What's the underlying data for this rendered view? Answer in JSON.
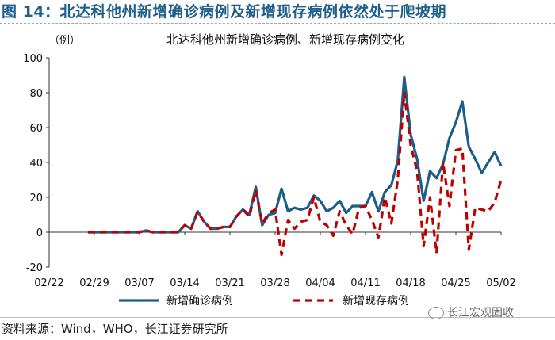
{
  "figure_title": "图 14：北达科他州新增确诊病例及新增现存病例依然处于爬坡期",
  "source": "资料来源：Wind，WHO，长江证券研究所",
  "watermark": "长江宏观固收",
  "colors": {
    "title": "#1f5f8b",
    "confirmed": "#1d5e89",
    "active": "#c00000"
  },
  "chart_data": {
    "type": "line",
    "title": "北达科他州新增确诊病例、新增现存病例变化",
    "ylabel": "（例）",
    "ylim": [
      -20,
      100
    ],
    "yticks": [
      -20,
      0,
      20,
      40,
      60,
      80,
      100
    ],
    "x_range": [
      "02/22",
      "05/02"
    ],
    "xtick_labels": [
      "02/22",
      "02/29",
      "03/07",
      "03/14",
      "03/21",
      "03/28",
      "04/04",
      "04/11",
      "04/18",
      "04/25",
      "05/02"
    ],
    "legend_position": "bottom",
    "grid": false,
    "series": [
      {
        "name": "新增确诊病例",
        "style": "solid",
        "color": "#1d5e89",
        "points": [
          [
            "02/28",
            0
          ],
          [
            "02/29",
            0
          ],
          [
            "03/01",
            0
          ],
          [
            "03/02",
            0
          ],
          [
            "03/03",
            0
          ],
          [
            "03/04",
            0
          ],
          [
            "03/05",
            0
          ],
          [
            "03/06",
            0
          ],
          [
            "03/07",
            0
          ],
          [
            "03/08",
            1
          ],
          [
            "03/09",
            0
          ],
          [
            "03/10",
            0
          ],
          [
            "03/11",
            0
          ],
          [
            "03/12",
            0
          ],
          [
            "03/13",
            0
          ],
          [
            "03/14",
            4
          ],
          [
            "03/15",
            2
          ],
          [
            "03/16",
            12
          ],
          [
            "03/17",
            6
          ],
          [
            "03/18",
            2
          ],
          [
            "03/19",
            2
          ],
          [
            "03/20",
            3
          ],
          [
            "03/21",
            3
          ],
          [
            "03/22",
            9
          ],
          [
            "03/23",
            13
          ],
          [
            "03/24",
            10
          ],
          [
            "03/25",
            26
          ],
          [
            "03/26",
            4
          ],
          [
            "03/27",
            10
          ],
          [
            "03/28",
            11
          ],
          [
            "03/29",
            25
          ],
          [
            "03/30",
            12
          ],
          [
            "03/31",
            14
          ],
          [
            "04/01",
            13
          ],
          [
            "04/02",
            14
          ],
          [
            "04/03",
            21
          ],
          [
            "04/04",
            18
          ],
          [
            "04/05",
            12
          ],
          [
            "04/06",
            14
          ],
          [
            "04/07",
            18
          ],
          [
            "04/08",
            11
          ],
          [
            "04/09",
            15
          ],
          [
            "04/10",
            15
          ],
          [
            "04/11",
            15
          ],
          [
            "04/12",
            23
          ],
          [
            "04/13",
            12
          ],
          [
            "04/14",
            23
          ],
          [
            "04/15",
            27
          ],
          [
            "04/16",
            41
          ],
          [
            "04/17",
            89
          ],
          [
            "04/18",
            56
          ],
          [
            "04/19",
            42
          ],
          [
            "04/20",
            18
          ],
          [
            "04/21",
            35
          ],
          [
            "04/22",
            31
          ],
          [
            "04/23",
            39
          ],
          [
            "04/24",
            54
          ],
          [
            "04/25",
            63
          ],
          [
            "04/26",
            75
          ],
          [
            "04/27",
            49
          ],
          [
            "04/28",
            42
          ],
          [
            "04/29",
            34
          ],
          [
            "04/30",
            40
          ],
          [
            "05/01",
            46
          ],
          [
            "05/02",
            38
          ]
        ]
      },
      {
        "name": "新增现存病例",
        "style": "dashed",
        "color": "#c00000",
        "points": [
          [
            "02/28",
            0
          ],
          [
            "02/29",
            0
          ],
          [
            "03/01",
            0
          ],
          [
            "03/02",
            0
          ],
          [
            "03/03",
            0
          ],
          [
            "03/04",
            0
          ],
          [
            "03/05",
            0
          ],
          [
            "03/06",
            0
          ],
          [
            "03/07",
            0
          ],
          [
            "03/08",
            1
          ],
          [
            "03/09",
            0
          ],
          [
            "03/10",
            0
          ],
          [
            "03/11",
            0
          ],
          [
            "03/12",
            0
          ],
          [
            "03/13",
            0
          ],
          [
            "03/14",
            4
          ],
          [
            "03/15",
            2
          ],
          [
            "03/16",
            12
          ],
          [
            "03/17",
            6
          ],
          [
            "03/18",
            2
          ],
          [
            "03/19",
            2
          ],
          [
            "03/20",
            3
          ],
          [
            "03/21",
            3
          ],
          [
            "03/22",
            9
          ],
          [
            "03/23",
            13
          ],
          [
            "03/24",
            9
          ],
          [
            "03/25",
            24
          ],
          [
            "03/26",
            5
          ],
          [
            "03/27",
            11
          ],
          [
            "03/28",
            13
          ],
          [
            "03/29",
            -13
          ],
          [
            "03/30",
            7
          ],
          [
            "03/31",
            2
          ],
          [
            "04/01",
            6
          ],
          [
            "04/02",
            7
          ],
          [
            "04/03",
            20
          ],
          [
            "04/04",
            6
          ],
          [
            "04/05",
            4
          ],
          [
            "04/06",
            -2
          ],
          [
            "04/07",
            12
          ],
          [
            "04/08",
            4
          ],
          [
            "04/09",
            -1
          ],
          [
            "04/10",
            14
          ],
          [
            "04/11",
            15
          ],
          [
            "04/12",
            7
          ],
          [
            "04/13",
            -3
          ],
          [
            "04/14",
            20
          ],
          [
            "04/15",
            5
          ],
          [
            "04/16",
            30
          ],
          [
            "04/17",
            80
          ],
          [
            "04/18",
            50
          ],
          [
            "04/19",
            35
          ],
          [
            "04/20",
            -8
          ],
          [
            "04/21",
            20
          ],
          [
            "04/22",
            -12
          ],
          [
            "04/23",
            40
          ],
          [
            "04/24",
            15
          ],
          [
            "04/25",
            47
          ],
          [
            "04/26",
            48
          ],
          [
            "04/27",
            -10
          ],
          [
            "04/28",
            14
          ],
          [
            "04/29",
            13
          ],
          [
            "04/30",
            12
          ],
          [
            "05/01",
            17
          ],
          [
            "05/02",
            30
          ]
        ]
      }
    ]
  }
}
